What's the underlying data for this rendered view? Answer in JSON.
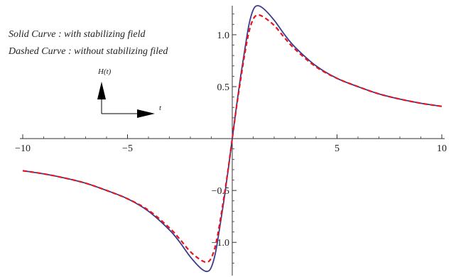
{
  "chart_data": {
    "type": "line",
    "xlim": [
      -10,
      10
    ],
    "ylim": [
      -1.32,
      1.28
    ],
    "x_ticks": [
      -10,
      -5,
      5,
      10
    ],
    "x_tick_labels": [
      "−10",
      "−5",
      "5",
      "10"
    ],
    "y_ticks": [
      -1.0,
      -0.5,
      0.5,
      1.0
    ],
    "y_tick_labels": [
      "−1.0",
      "−0.5",
      "0.5",
      "1.0"
    ],
    "grid": false,
    "series": [
      {
        "style": "solid",
        "color": "#3b3b8f",
        "x": [
          -10,
          -9,
          -8,
          -7,
          -6,
          -5,
          -4,
          -3,
          -2.5,
          -2,
          -1.5,
          -1.2,
          -1,
          -0.8,
          -0.6,
          -0.4,
          -0.2,
          0,
          0.2,
          0.4,
          0.6,
          0.8,
          1,
          1.2,
          1.5,
          2,
          2.5,
          3,
          4,
          5,
          6,
          7,
          8,
          9,
          10
        ],
        "y": [
          -0.31,
          -0.34,
          -0.38,
          -0.43,
          -0.5,
          -0.58,
          -0.7,
          -0.88,
          -1.0,
          -1.14,
          -1.25,
          -1.28,
          -1.24,
          -1.1,
          -0.86,
          -0.6,
          -0.31,
          0,
          0.31,
          0.6,
          0.86,
          1.1,
          1.24,
          1.28,
          1.25,
          1.14,
          1.0,
          0.88,
          0.7,
          0.58,
          0.5,
          0.43,
          0.38,
          0.34,
          0.31
        ]
      },
      {
        "style": "dashed",
        "color": "#e8141b",
        "x": [
          -10,
          -9,
          -8,
          -7,
          -6,
          -5,
          -4,
          -3,
          -2.5,
          -2,
          -1.5,
          -1.2,
          -1,
          -0.8,
          -0.6,
          -0.4,
          -0.2,
          0,
          0.2,
          0.4,
          0.6,
          0.8,
          1,
          1.2,
          1.5,
          2,
          2.5,
          3,
          4,
          5,
          6,
          7,
          8,
          9,
          10
        ],
        "y": [
          -0.31,
          -0.34,
          -0.38,
          -0.43,
          -0.5,
          -0.58,
          -0.69,
          -0.86,
          -0.97,
          -1.09,
          -1.17,
          -1.19,
          -1.15,
          -1.03,
          -0.82,
          -0.57,
          -0.3,
          0,
          0.3,
          0.57,
          0.82,
          1.03,
          1.15,
          1.19,
          1.17,
          1.09,
          0.97,
          0.86,
          0.69,
          0.58,
          0.5,
          0.43,
          0.38,
          0.34,
          0.31
        ]
      }
    ],
    "annotations": {
      "line1": "Solid Curve  :  with stabilizing field",
      "line2": "Dashed Curve  :  without stabilizing filed",
      "y_axis_symbol": "H(t)",
      "x_axis_symbol": "t"
    }
  }
}
